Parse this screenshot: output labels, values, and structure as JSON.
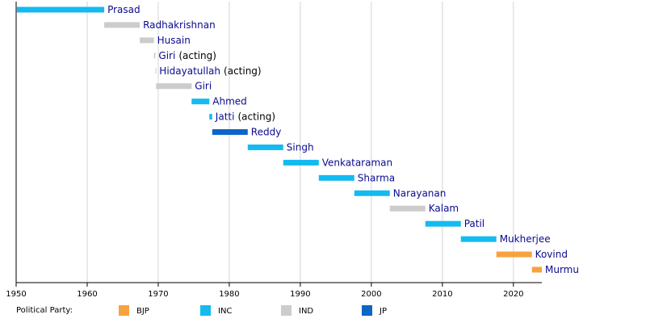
{
  "chart_data": {
    "type": "timeline",
    "xlim": [
      1950,
      2024
    ],
    "xticks": [
      1950,
      1960,
      1970,
      1980,
      1990,
      2000,
      2010,
      2020
    ],
    "grid": true,
    "legend_title": "Political Party:",
    "parties": [
      {
        "name": "BJP",
        "color": "#f7a23f"
      },
      {
        "name": "INC",
        "color": "#14baf0"
      },
      {
        "name": "IND",
        "color": "#cccccc"
      },
      {
        "name": "JP",
        "color": "#0b66c8"
      }
    ],
    "rows": [
      {
        "name": "Prasad",
        "start": 1950.1,
        "end": 1962.4,
        "party": "INC"
      },
      {
        "name": "Radhakrishnan",
        "start": 1962.4,
        "end": 1967.4,
        "party": "IND"
      },
      {
        "name": "Husain",
        "start": 1967.4,
        "end": 1969.4,
        "party": "IND"
      },
      {
        "name": "Giri",
        "note": "(acting)",
        "start": 1969.4,
        "end": 1969.6,
        "party": "IND"
      },
      {
        "name": "Hidayatullah",
        "note": "(acting)",
        "start": 1969.6,
        "end": 1969.7,
        "party": "IND"
      },
      {
        "name": "Giri",
        "start": 1969.7,
        "end": 1974.7,
        "party": "IND"
      },
      {
        "name": "Ahmed",
        "start": 1974.7,
        "end": 1977.2,
        "party": "INC"
      },
      {
        "name": "Jatti",
        "note": "(acting)",
        "start": 1977.2,
        "end": 1977.6,
        "party": "INC"
      },
      {
        "name": "Reddy",
        "start": 1977.6,
        "end": 1982.6,
        "party": "JP"
      },
      {
        "name": "Singh",
        "start": 1982.6,
        "end": 1987.6,
        "party": "INC"
      },
      {
        "name": "Venkataraman",
        "start": 1987.6,
        "end": 1992.6,
        "party": "INC"
      },
      {
        "name": "Sharma",
        "start": 1992.6,
        "end": 1997.6,
        "party": "INC"
      },
      {
        "name": "Narayanan",
        "start": 1997.6,
        "end": 2002.6,
        "party": "INC"
      },
      {
        "name": "Kalam",
        "start": 2002.6,
        "end": 2007.6,
        "party": "IND"
      },
      {
        "name": "Patil",
        "start": 2007.6,
        "end": 2012.6,
        "party": "INC"
      },
      {
        "name": "Mukherjee",
        "start": 2012.6,
        "end": 2017.6,
        "party": "INC"
      },
      {
        "name": "Kovind",
        "start": 2017.6,
        "end": 2022.6,
        "party": "BJP"
      },
      {
        "name": "Murmu",
        "start": 2022.6,
        "end": 2024.0,
        "party": "BJP"
      }
    ]
  }
}
